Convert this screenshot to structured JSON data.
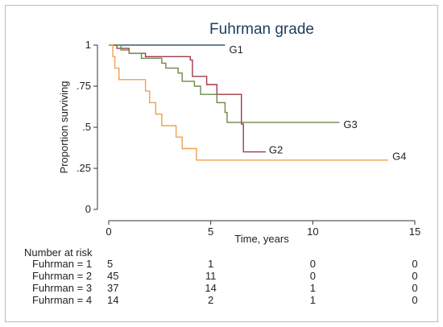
{
  "chart_data": {
    "type": "line",
    "title": "Fuhrman grade",
    "xlabel": "Time, years",
    "ylabel": "Proportion surviving",
    "xlim": [
      0,
      15
    ],
    "ylim": [
      0,
      1
    ],
    "x_ticks": [
      0,
      5,
      10,
      15
    ],
    "y_ticks": [
      0,
      0.25,
      0.5,
      0.75,
      1
    ],
    "y_tick_labels": [
      "0",
      ".25",
      ".5",
      ".75",
      "1"
    ],
    "grid": false,
    "legend": "none",
    "series": [
      {
        "name": "G1",
        "color": "#2f5f7f",
        "points": [
          [
            0,
            1
          ],
          [
            5.7,
            1
          ]
        ]
      },
      {
        "name": "G2",
        "color": "#a23a4a",
        "points": [
          [
            0,
            1
          ],
          [
            0.4,
            1
          ],
          [
            0.4,
            0.98
          ],
          [
            1.0,
            0.98
          ],
          [
            1.0,
            0.95
          ],
          [
            1.8,
            0.95
          ],
          [
            1.8,
            0.93
          ],
          [
            4.0,
            0.93
          ],
          [
            4.0,
            0.91
          ],
          [
            4.0,
            0.91
          ],
          [
            4.1,
            0.91
          ],
          [
            4.1,
            0.81
          ],
          [
            4.8,
            0.81
          ],
          [
            4.8,
            0.76
          ],
          [
            5.3,
            0.76
          ],
          [
            5.3,
            0.7
          ],
          [
            6.5,
            0.7
          ],
          [
            6.5,
            0.52
          ],
          [
            6.6,
            0.52
          ],
          [
            6.6,
            0.35
          ],
          [
            7.7,
            0.35
          ]
        ]
      },
      {
        "name": "G3",
        "color": "#6a8a4a",
        "points": [
          [
            0,
            1
          ],
          [
            0.6,
            1
          ],
          [
            0.6,
            0.97
          ],
          [
            1.0,
            0.97
          ],
          [
            1.0,
            0.95
          ],
          [
            1.6,
            0.95
          ],
          [
            1.6,
            0.92
          ],
          [
            2.6,
            0.92
          ],
          [
            2.6,
            0.89
          ],
          [
            2.8,
            0.89
          ],
          [
            2.8,
            0.86
          ],
          [
            3.4,
            0.86
          ],
          [
            3.4,
            0.83
          ],
          [
            3.6,
            0.83
          ],
          [
            3.6,
            0.78
          ],
          [
            4.2,
            0.78
          ],
          [
            4.2,
            0.75
          ],
          [
            4.5,
            0.75
          ],
          [
            4.5,
            0.7
          ],
          [
            5.3,
            0.7
          ],
          [
            5.3,
            0.65
          ],
          [
            5.7,
            0.65
          ],
          [
            5.7,
            0.59
          ],
          [
            5.8,
            0.59
          ],
          [
            5.8,
            0.53
          ],
          [
            11.3,
            0.53
          ]
        ]
      },
      {
        "name": "G4",
        "color": "#f0a050",
        "points": [
          [
            0,
            1
          ],
          [
            0.2,
            1
          ],
          [
            0.2,
            0.93
          ],
          [
            0.3,
            0.93
          ],
          [
            0.3,
            0.86
          ],
          [
            0.5,
            0.86
          ],
          [
            0.5,
            0.79
          ],
          [
            1.8,
            0.79
          ],
          [
            1.8,
            0.72
          ],
          [
            2.0,
            0.72
          ],
          [
            2.0,
            0.65
          ],
          [
            2.3,
            0.65
          ],
          [
            2.3,
            0.58
          ],
          [
            2.6,
            0.58
          ],
          [
            2.6,
            0.51
          ],
          [
            3.3,
            0.51
          ],
          [
            3.3,
            0.44
          ],
          [
            3.6,
            0.44
          ],
          [
            3.6,
            0.37
          ],
          [
            4.3,
            0.37
          ],
          [
            4.3,
            0.3
          ],
          [
            13.7,
            0.3
          ]
        ]
      }
    ],
    "curve_labels": [
      {
        "text": "G1",
        "x": 5.9,
        "y": 0.97
      },
      {
        "text": "G2",
        "x": 7.85,
        "y": 0.36
      },
      {
        "text": "G3",
        "x": 11.5,
        "y": 0.515
      },
      {
        "text": "G4",
        "x": 13.9,
        "y": 0.32
      }
    ],
    "risk_table": {
      "heading": "Number at risk",
      "rows": [
        {
          "label": "Fuhrman = 1",
          "values": [
            "5",
            "1",
            "0",
            "0"
          ]
        },
        {
          "label": "Fuhrman = 2",
          "values": [
            "45",
            "11",
            "0",
            "0"
          ]
        },
        {
          "label": "Fuhrman = 3",
          "values": [
            "37",
            "14",
            "1",
            "0"
          ]
        },
        {
          "label": "Fuhrman = 4",
          "values": [
            "14",
            "2",
            "1",
            "0"
          ]
        }
      ]
    }
  }
}
